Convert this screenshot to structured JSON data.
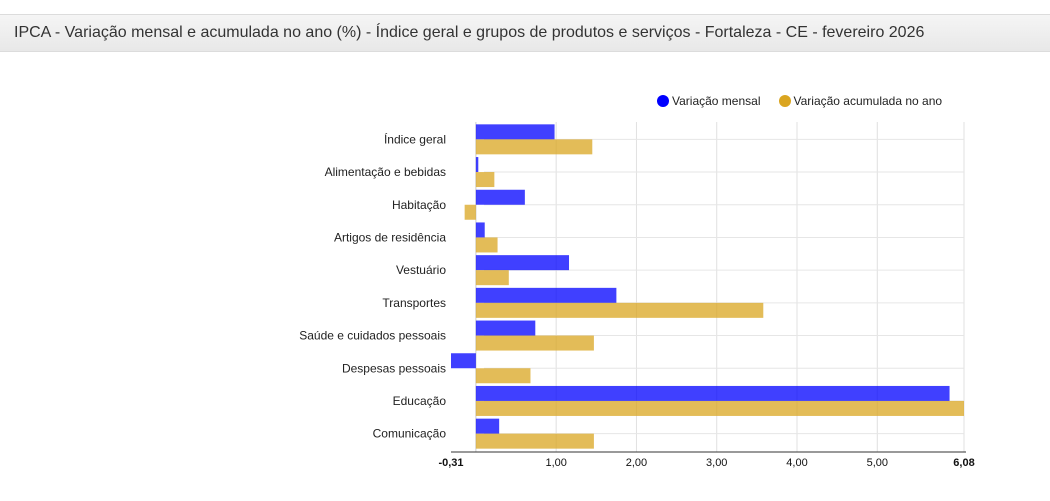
{
  "header": {
    "title": "IPCA - Variação mensal e acumulada no ano (%) - Índice geral e grupos de produtos e serviços - Fortaleza - CE - fevereiro 2026"
  },
  "colors": {
    "mensal": "#0000ff",
    "acumulada": "#daa520"
  },
  "chart_data": {
    "type": "bar",
    "orientation": "horizontal",
    "title": "IPCA - Variação mensal e acumulada no ano (%) - Índice geral e grupos de produtos e serviços - Fortaleza - CE - fevereiro 2026",
    "xlabel": "",
    "ylabel": "",
    "categories": [
      "Índice geral",
      "Alimentação e bebidas",
      "Habitação",
      "Artigos de residência",
      "Vestuário",
      "Transportes",
      "Saúde e cuidados pessoais",
      "Despesas pessoais",
      "Educação",
      "Comunicação"
    ],
    "series": [
      {
        "name": "Variação mensal",
        "color": "#0000ff",
        "values": [
          0.98,
          0.03,
          0.61,
          0.11,
          1.16,
          1.75,
          0.74,
          -0.31,
          5.9,
          0.29
        ]
      },
      {
        "name": "Variação acumulada no ano",
        "color": "#daa520",
        "values": [
          1.45,
          0.23,
          -0.14,
          0.27,
          0.41,
          3.58,
          1.47,
          0.68,
          6.08,
          1.47
        ]
      }
    ],
    "xlim": [
      -0.31,
      6.08
    ],
    "xticks": [
      -0.31,
      1.0,
      2.0,
      3.0,
      4.0,
      5.0,
      6.08
    ],
    "xtick_labels": [
      "-0,31",
      "1,00",
      "2,00",
      "3,00",
      "4,00",
      "5,00",
      "6,08"
    ],
    "bold_tick_labels": [
      "-0,31",
      "6,08"
    ],
    "grid": true,
    "legend_position": "top-right"
  }
}
